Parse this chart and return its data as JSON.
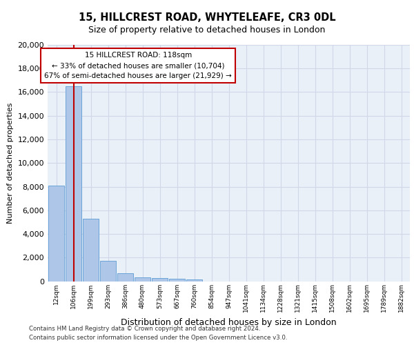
{
  "title1": "15, HILLCREST ROAD, WHYTELEAFE, CR3 0DL",
  "title2": "Size of property relative to detached houses in London",
  "xlabel": "Distribution of detached houses by size in London",
  "ylabel": "Number of detached properties",
  "bar_values": [
    8100,
    16500,
    5300,
    1750,
    650,
    350,
    260,
    200,
    160,
    0,
    0,
    0,
    0,
    0,
    0,
    0,
    0,
    0,
    0,
    0,
    0
  ],
  "bar_labels": [
    "12sqm",
    "106sqm",
    "199sqm",
    "293sqm",
    "386sqm",
    "480sqm",
    "573sqm",
    "667sqm",
    "760sqm",
    "854sqm",
    "947sqm",
    "1041sqm",
    "1134sqm",
    "1228sqm",
    "1321sqm",
    "1415sqm",
    "1508sqm",
    "1602sqm",
    "1695sqm",
    "1789sqm",
    "1882sqm"
  ],
  "property_line_x": 1.0,
  "annotation_title": "15 HILLCREST ROAD: 118sqm",
  "annotation_line1": "← 33% of detached houses are smaller (10,704)",
  "annotation_line2": "67% of semi-detached houses are larger (21,929) →",
  "bar_color": "#aec6e8",
  "bar_edge_color": "#5b9bd5",
  "line_color": "#c00000",
  "annotation_box_color": "#ffffff",
  "annotation_box_edge": "#c00000",
  "grid_color": "#d0d8e8",
  "background_color": "#eaf0f8",
  "ylim": [
    0,
    20000
  ],
  "yticks": [
    0,
    2000,
    4000,
    6000,
    8000,
    10000,
    12000,
    14000,
    16000,
    18000,
    20000
  ],
  "footer1": "Contains HM Land Registry data © Crown copyright and database right 2024.",
  "footer2": "Contains public sector information licensed under the Open Government Licence v3.0."
}
